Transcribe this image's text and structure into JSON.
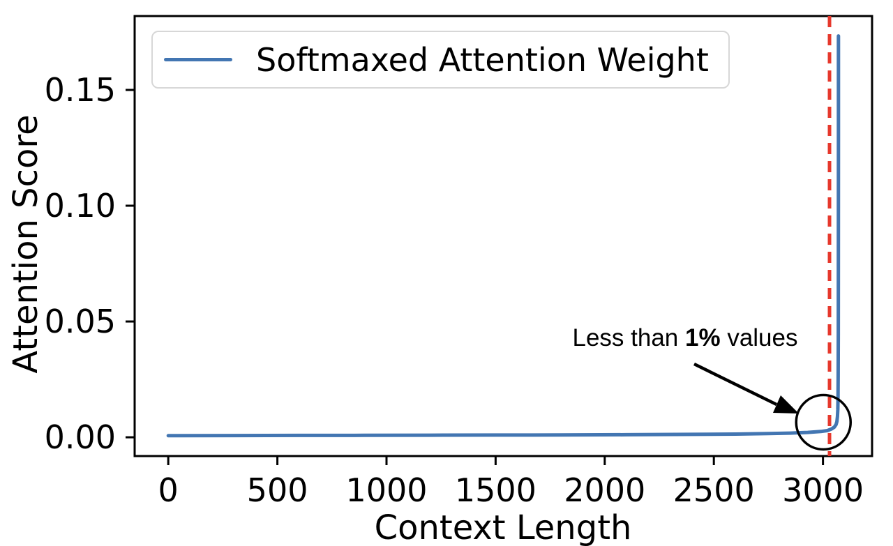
{
  "figure": {
    "background": "#ffffff"
  },
  "chart_data": {
    "type": "line",
    "title": "",
    "xlabel": "Context Length",
    "ylabel": "Attention Score",
    "xlim": [
      -154,
      3225
    ],
    "ylim": [
      -0.0081,
      0.1819
    ],
    "grid": false,
    "xticks": [
      {
        "v": 0,
        "label": "0"
      },
      {
        "v": 500,
        "label": "500"
      },
      {
        "v": 1000,
        "label": "1000"
      },
      {
        "v": 1500,
        "label": "1500"
      },
      {
        "v": 2000,
        "label": "2000"
      },
      {
        "v": 2500,
        "label": "2500"
      },
      {
        "v": 3000,
        "label": "3000"
      }
    ],
    "yticks": [
      {
        "v": 0.0,
        "label": "0.00"
      },
      {
        "v": 0.05,
        "label": "0.05"
      },
      {
        "v": 0.1,
        "label": "0.10"
      },
      {
        "v": 0.15,
        "label": "0.15"
      }
    ],
    "legend": {
      "position": "upper left",
      "entries": [
        {
          "label": "Softmaxed Attention Weight",
          "color": "#4376b2"
        }
      ]
    },
    "series": [
      {
        "name": "Softmaxed Attention Weight",
        "color": "#4376b2",
        "points": [
          [
            0,
            0.0007
          ],
          [
            300,
            0.00075
          ],
          [
            600,
            0.0008
          ],
          [
            900,
            0.00085
          ],
          [
            1200,
            0.0009
          ],
          [
            1500,
            0.00095
          ],
          [
            1800,
            0.001
          ],
          [
            2100,
            0.0011
          ],
          [
            2400,
            0.00125
          ],
          [
            2600,
            0.0014
          ],
          [
            2750,
            0.0016
          ],
          [
            2850,
            0.0018
          ],
          [
            2930,
            0.0021
          ],
          [
            2990,
            0.0025
          ],
          [
            3020,
            0.0029
          ],
          [
            3040,
            0.0036
          ],
          [
            3052,
            0.0044
          ],
          [
            3060,
            0.0055
          ],
          [
            3064,
            0.0068
          ],
          [
            3066.5,
            0.009
          ],
          [
            3068,
            0.012
          ],
          [
            3069,
            0.017
          ],
          [
            3069.7,
            0.027
          ],
          [
            3070.2,
            0.045
          ],
          [
            3070.6,
            0.08
          ],
          [
            3070.9,
            0.13
          ],
          [
            3071,
            0.1733
          ]
        ]
      }
    ],
    "vline": {
      "x": 3030,
      "color": "#e6382c",
      "style": "dashed"
    },
    "annotation": {
      "text_prefix": "Less than ",
      "text_bold": "1%",
      "text_suffix": " values",
      "circle": {
        "x": 3002,
        "y": 0.0065,
        "radius_px": 39
      }
    }
  }
}
